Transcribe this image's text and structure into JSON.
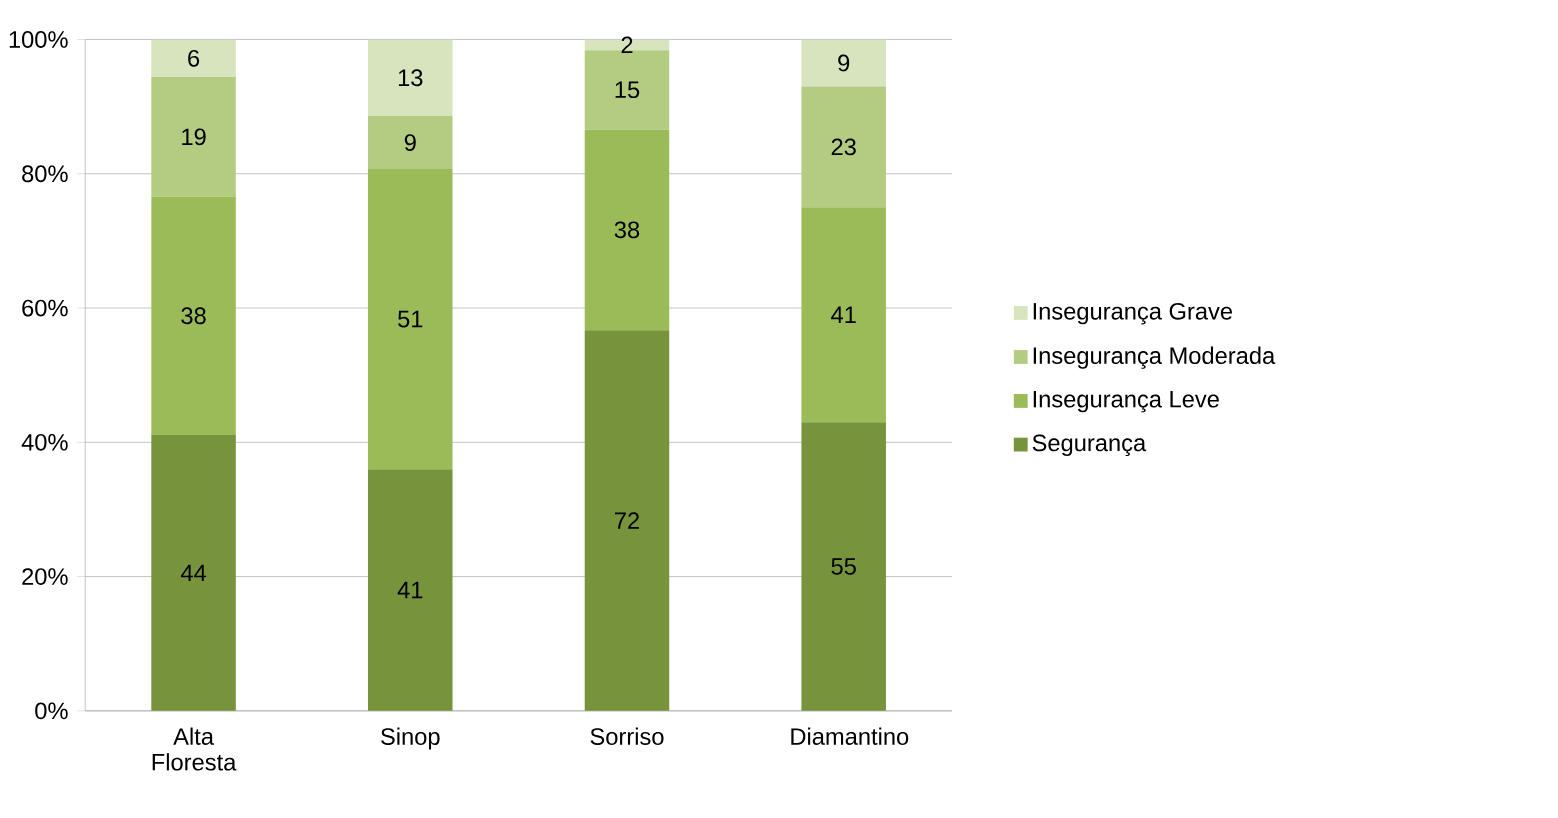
{
  "chart_data": {
    "type": "bar",
    "stacked": true,
    "categories": [
      "Alta Floresta",
      "Sinop",
      "Sorriso",
      "Diamantino"
    ],
    "series": [
      {
        "name": "Segurança",
        "color": "#77933c",
        "values": [
          41.1,
          36.0,
          56.7,
          43.0
        ]
      },
      {
        "name": "Insegurança Leve",
        "color": "#9bbb59",
        "values": [
          35.5,
          44.7,
          29.9,
          32.0
        ]
      },
      {
        "name": "Insegurança Moderada",
        "color": "#b3cc82",
        "values": [
          17.8,
          7.9,
          11.8,
          18.0
        ]
      },
      {
        "name": "Insegurança Grave",
        "color": "#d7e4bd",
        "values": [
          5.6,
          11.4,
          1.6,
          7.0
        ]
      }
    ],
    "annotations": [
      "44",
      "38",
      "19",
      "6",
      "41",
      "51",
      "9",
      "13",
      "72",
      "38",
      "15",
      "2",
      "55",
      "41",
      "23",
      "9"
    ],
    "ylim": [
      0,
      100
    ],
    "yticks": [
      {
        "value": 0,
        "label": "0%"
      },
      {
        "value": 20,
        "label": "20%"
      },
      {
        "value": 40,
        "label": "40%"
      },
      {
        "value": 60,
        "label": "60%"
      },
      {
        "value": 80,
        "label": "80%"
      },
      {
        "value": 100,
        "label": "100%"
      }
    ],
    "grid": "y",
    "legend": "right"
  }
}
